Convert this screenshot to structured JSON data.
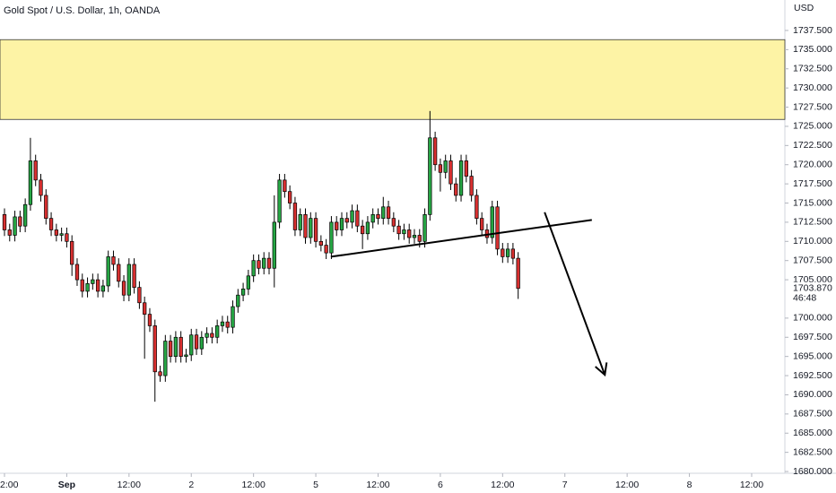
{
  "chart_data": {
    "type": "candlestick",
    "title": "Gold Spot / U.S. Dollar, 1h, OANDA",
    "y_axis_label": "USD",
    "up_color": "#26a644",
    "down_color": "#d83030",
    "grid": false,
    "x": [
      0,
      1,
      2,
      3,
      4,
      5,
      6,
      7,
      8,
      9,
      10,
      11,
      12,
      13,
      14,
      15,
      16,
      17,
      18,
      19,
      20,
      21,
      22,
      23,
      24,
      25,
      26,
      27,
      28,
      29,
      30,
      31,
      32,
      33,
      34,
      35,
      36,
      37,
      38,
      39,
      40,
      41,
      42,
      43,
      44,
      45,
      46,
      47,
      48,
      49,
      50,
      51,
      52,
      53,
      54,
      55,
      56,
      57,
      58,
      59,
      60,
      61,
      62,
      63,
      64,
      65,
      66,
      67,
      68,
      69,
      70,
      71,
      72,
      73,
      74,
      75,
      76,
      77,
      78,
      79,
      80,
      81,
      82,
      83,
      84,
      85,
      86,
      87,
      88,
      89,
      90,
      91,
      92,
      93,
      94,
      95,
      96,
      97,
      98,
      99
    ],
    "open": [
      1713.5,
      1711.5,
      1710.8,
      1713.2,
      1712.0,
      1714.8,
      1720.5,
      1718.0,
      1716.0,
      1713.0,
      1711.5,
      1710.8,
      1711.0,
      1710.0,
      1707.0,
      1705.0,
      1703.5,
      1704.5,
      1705.0,
      1703.5,
      1704.2,
      1708.0,
      1707.0,
      1704.8,
      1703.0,
      1707.0,
      1704.0,
      1702.0,
      1700.5,
      1699.0,
      1693.0,
      1692.5,
      1697.0,
      1695.0,
      1697.5,
      1695.0,
      1695.2,
      1697.8,
      1696.0,
      1697.5,
      1698.0,
      1697.5,
      1699.0,
      1699.5,
      1698.8,
      1701.5,
      1703.0,
      1703.8,
      1705.5,
      1707.5,
      1706.5,
      1707.8,
      1706.5,
      1712.5,
      1718.0,
      1716.5,
      1715.0,
      1711.5,
      1713.5,
      1710.5,
      1713.0,
      1710.0,
      1709.5,
      1708.5,
      1712.5,
      1711.5,
      1713.0,
      1712.5,
      1714.0,
      1712.0,
      1711.0,
      1712.5,
      1713.5,
      1713.0,
      1714.5,
      1713.0,
      1712.0,
      1711.0,
      1711.5,
      1710.5,
      1710.8,
      1710.0,
      1713.5,
      1723.5,
      1720.0,
      1719.0,
      1720.5,
      1717.5,
      1716.0,
      1720.5,
      1718.5,
      1716.0,
      1713.0,
      1711.5,
      1710.5,
      1714.5,
      1709.0,
      1708.0,
      1709.0,
      1707.8
    ],
    "high": [
      1714.3,
      1712.3,
      1714.0,
      1714.0,
      1715.6,
      1723.5,
      1721.3,
      1718.8,
      1716.8,
      1713.8,
      1712.3,
      1711.8,
      1711.8,
      1710.8,
      1707.8,
      1705.8,
      1705.3,
      1705.8,
      1705.8,
      1705.0,
      1708.8,
      1708.8,
      1707.8,
      1705.6,
      1707.8,
      1707.8,
      1704.8,
      1702.8,
      1701.3,
      1699.8,
      1693.8,
      1697.8,
      1697.8,
      1698.3,
      1698.3,
      1696.0,
      1698.6,
      1698.6,
      1698.3,
      1698.8,
      1698.8,
      1699.8,
      1700.3,
      1700.3,
      1702.3,
      1703.8,
      1704.6,
      1706.3,
      1708.3,
      1708.3,
      1708.6,
      1708.6,
      1716.0,
      1718.8,
      1718.8,
      1717.3,
      1715.8,
      1714.3,
      1714.3,
      1713.8,
      1713.8,
      1710.8,
      1710.3,
      1713.3,
      1713.3,
      1713.8,
      1713.8,
      1714.8,
      1714.8,
      1712.8,
      1713.3,
      1714.3,
      1714.3,
      1715.8,
      1715.3,
      1713.8,
      1712.8,
      1712.3,
      1712.3,
      1711.6,
      1711.6,
      1714.3,
      1727.0,
      1724.3,
      1720.8,
      1721.3,
      1721.3,
      1718.3,
      1721.3,
      1721.3,
      1719.3,
      1716.8,
      1713.8,
      1712.3,
      1715.3,
      1715.3,
      1709.8,
      1709.8,
      1709.8,
      1708.6
    ],
    "low": [
      1710.7,
      1710.0,
      1710.0,
      1711.2,
      1711.2,
      1714.0,
      1717.2,
      1715.2,
      1712.2,
      1710.7,
      1710.0,
      1710.0,
      1709.2,
      1705.5,
      1704.2,
      1702.7,
      1702.7,
      1703.7,
      1702.7,
      1702.7,
      1703.4,
      1706.2,
      1704.0,
      1702.2,
      1702.2,
      1703.2,
      1701.2,
      1694.7,
      1698.2,
      1689.1,
      1691.7,
      1691.7,
      1694.2,
      1694.2,
      1694.2,
      1694.2,
      1694.4,
      1695.2,
      1695.2,
      1696.7,
      1696.7,
      1696.7,
      1698.2,
      1698.0,
      1698.0,
      1700.7,
      1702.2,
      1703.0,
      1704.7,
      1705.7,
      1705.7,
      1705.7,
      1704.0,
      1711.7,
      1715.7,
      1714.2,
      1710.7,
      1710.7,
      1709.7,
      1709.7,
      1709.2,
      1708.7,
      1707.7,
      1707.7,
      1710.7,
      1710.7,
      1711.7,
      1711.7,
      1711.2,
      1709.0,
      1710.2,
      1711.7,
      1712.2,
      1712.2,
      1712.2,
      1711.2,
      1710.2,
      1710.2,
      1709.7,
      1709.7,
      1709.2,
      1709.2,
      1712.7,
      1719.2,
      1716.5,
      1718.2,
      1716.7,
      1715.2,
      1715.2,
      1717.7,
      1715.2,
      1712.2,
      1710.7,
      1709.7,
      1709.7,
      1708.2,
      1707.2,
      1707.2,
      1707.0,
      1702.5
    ],
    "close": [
      1711.5,
      1710.8,
      1713.2,
      1712.0,
      1714.8,
      1720.5,
      1718.0,
      1716.0,
      1713.0,
      1711.5,
      1710.8,
      1711.0,
      1710.0,
      1707.0,
      1705.0,
      1703.5,
      1704.5,
      1705.0,
      1703.5,
      1704.2,
      1708.0,
      1707.0,
      1704.8,
      1703.0,
      1707.0,
      1704.0,
      1702.0,
      1700.5,
      1699.0,
      1693.0,
      1692.5,
      1697.0,
      1695.0,
      1697.5,
      1695.0,
      1695.2,
      1697.8,
      1696.0,
      1697.5,
      1698.0,
      1697.5,
      1699.0,
      1699.5,
      1698.8,
      1701.5,
      1703.0,
      1703.8,
      1705.5,
      1707.5,
      1706.5,
      1707.8,
      1706.5,
      1712.5,
      1718.0,
      1716.5,
      1715.0,
      1711.5,
      1713.5,
      1710.5,
      1713.0,
      1710.0,
      1709.5,
      1708.5,
      1712.5,
      1711.5,
      1713.0,
      1712.5,
      1714.0,
      1712.0,
      1711.0,
      1712.5,
      1713.5,
      1713.0,
      1714.5,
      1713.0,
      1712.0,
      1711.0,
      1711.5,
      1710.5,
      1710.8,
      1710.0,
      1713.5,
      1723.5,
      1720.0,
      1719.0,
      1720.5,
      1717.5,
      1716.0,
      1720.5,
      1718.5,
      1716.0,
      1713.0,
      1711.5,
      1710.5,
      1714.5,
      1709.0,
      1708.0,
      1709.0,
      1707.8,
      1703.87
    ],
    "xlim": [
      -0.864,
      150.4
    ],
    "xticks": [
      {
        "value": 0,
        "label": "2:00"
      },
      {
        "value": 12,
        "label": "Sep"
      },
      {
        "value": 24,
        "label": "12:00"
      },
      {
        "value": 36,
        "label": "2"
      },
      {
        "value": 48,
        "label": "12:00"
      },
      {
        "value": 60,
        "label": "5"
      },
      {
        "value": 72,
        "label": "12:00"
      },
      {
        "value": 84,
        "label": "6"
      },
      {
        "value": 96,
        "label": "12:00"
      },
      {
        "value": 108,
        "label": "7"
      },
      {
        "value": 120,
        "label": "12:00"
      },
      {
        "value": 132,
        "label": "8"
      },
      {
        "value": 144,
        "label": "12:00"
      }
    ],
    "ylim": [
      1679.77,
      1741.47
    ],
    "yticks": [
      {
        "value": 1680,
        "label": "1680.000"
      },
      {
        "value": 1682.5,
        "label": "1682.500"
      },
      {
        "value": 1685,
        "label": "1685.000"
      },
      {
        "value": 1687.5,
        "label": "1687.500"
      },
      {
        "value": 1690,
        "label": "1690.000"
      },
      {
        "value": 1692.5,
        "label": "1692.500"
      },
      {
        "value": 1695,
        "label": "1695.000"
      },
      {
        "value": 1697.5,
        "label": "1697.500"
      },
      {
        "value": 1700,
        "label": "1700.000"
      },
      {
        "value": 1705,
        "label": "1705.000"
      },
      {
        "value": 1707.5,
        "label": "1707.500"
      },
      {
        "value": 1710,
        "label": "1710.000"
      },
      {
        "value": 1712.5,
        "label": "1712.500"
      },
      {
        "value": 1715,
        "label": "1715.000"
      },
      {
        "value": 1717.5,
        "label": "1717.500"
      },
      {
        "value": 1720,
        "label": "1720.000"
      },
      {
        "value": 1722.5,
        "label": "1722.500"
      },
      {
        "value": 1725,
        "label": "1725.000"
      },
      {
        "value": 1727.5,
        "label": "1727.500"
      },
      {
        "value": 1730,
        "label": "1730.000"
      },
      {
        "value": 1732.5,
        "label": "1732.500"
      },
      {
        "value": 1735,
        "label": "1735.000"
      },
      {
        "value": 1737.5,
        "label": "1737.500"
      }
    ],
    "last_price": {
      "value": 1703.87,
      "label": "1703.870"
    },
    "countdown": "46:48",
    "zone": {
      "ymin": 1725.9,
      "ymax": 1736.3,
      "color": "#fdf3a5"
    },
    "trendline": {
      "x": [
        62.9,
        113.2
      ],
      "y": [
        1708.0,
        1712.8
      ]
    },
    "arrow": {
      "x": [
        104.1,
        115.7
      ],
      "y": [
        1713.8,
        1692.6
      ]
    }
  }
}
